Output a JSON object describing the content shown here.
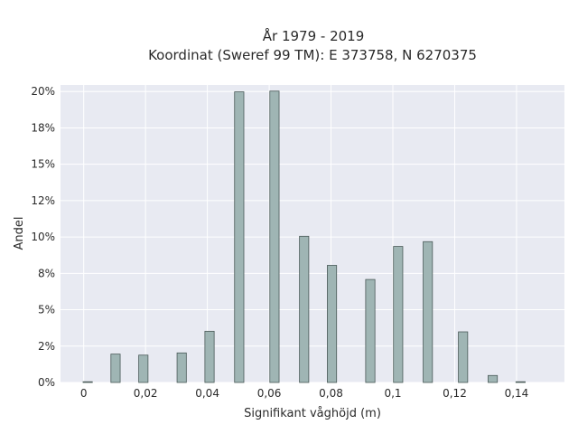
{
  "chart_data": {
    "type": "bar",
    "title": "År 1979 - 2019",
    "subtitle": "Koordinat (Sweref 99 TM): E 373758, N 6270375",
    "xlabel": "Signifikant våghöjd (m)",
    "ylabel": "Andel",
    "x_ticks": [
      "0",
      "0,02",
      "0,04",
      "0,06",
      "0,08",
      "0,1",
      "0,12",
      "0,14"
    ],
    "y_ticks": [
      "0%",
      "2%",
      "5%",
      "8%",
      "10%",
      "12%",
      "15%",
      "18%",
      "20%"
    ],
    "xlim": [
      -0.0075,
      0.1555
    ],
    "ylim": [
      0,
      0.2045
    ],
    "bars": [
      {
        "x": 0.0013,
        "value": 0.0005
      },
      {
        "x": 0.0103,
        "value": 0.0195
      },
      {
        "x": 0.0193,
        "value": 0.0188
      },
      {
        "x": 0.0317,
        "value": 0.0203
      },
      {
        "x": 0.0407,
        "value": 0.0352
      },
      {
        "x": 0.0503,
        "value": 0.1998
      },
      {
        "x": 0.0617,
        "value": 0.2003
      },
      {
        "x": 0.0713,
        "value": 0.1005
      },
      {
        "x": 0.0803,
        "value": 0.0805
      },
      {
        "x": 0.0927,
        "value": 0.0708
      },
      {
        "x": 0.1017,
        "value": 0.0935
      },
      {
        "x": 0.1113,
        "value": 0.0968
      },
      {
        "x": 0.1227,
        "value": 0.0348
      },
      {
        "x": 0.1323,
        "value": 0.0048
      },
      {
        "x": 0.1413,
        "value": 0.0005
      }
    ],
    "bar_width": 0.003,
    "grid": true,
    "legend": "none",
    "colors": {
      "bar_fill": "#9fb5b4",
      "bar_stroke": "#4a5a58",
      "plot_bg": "#e8eaf2",
      "grid": "#ffffff",
      "text": "#2a2a2a"
    }
  }
}
